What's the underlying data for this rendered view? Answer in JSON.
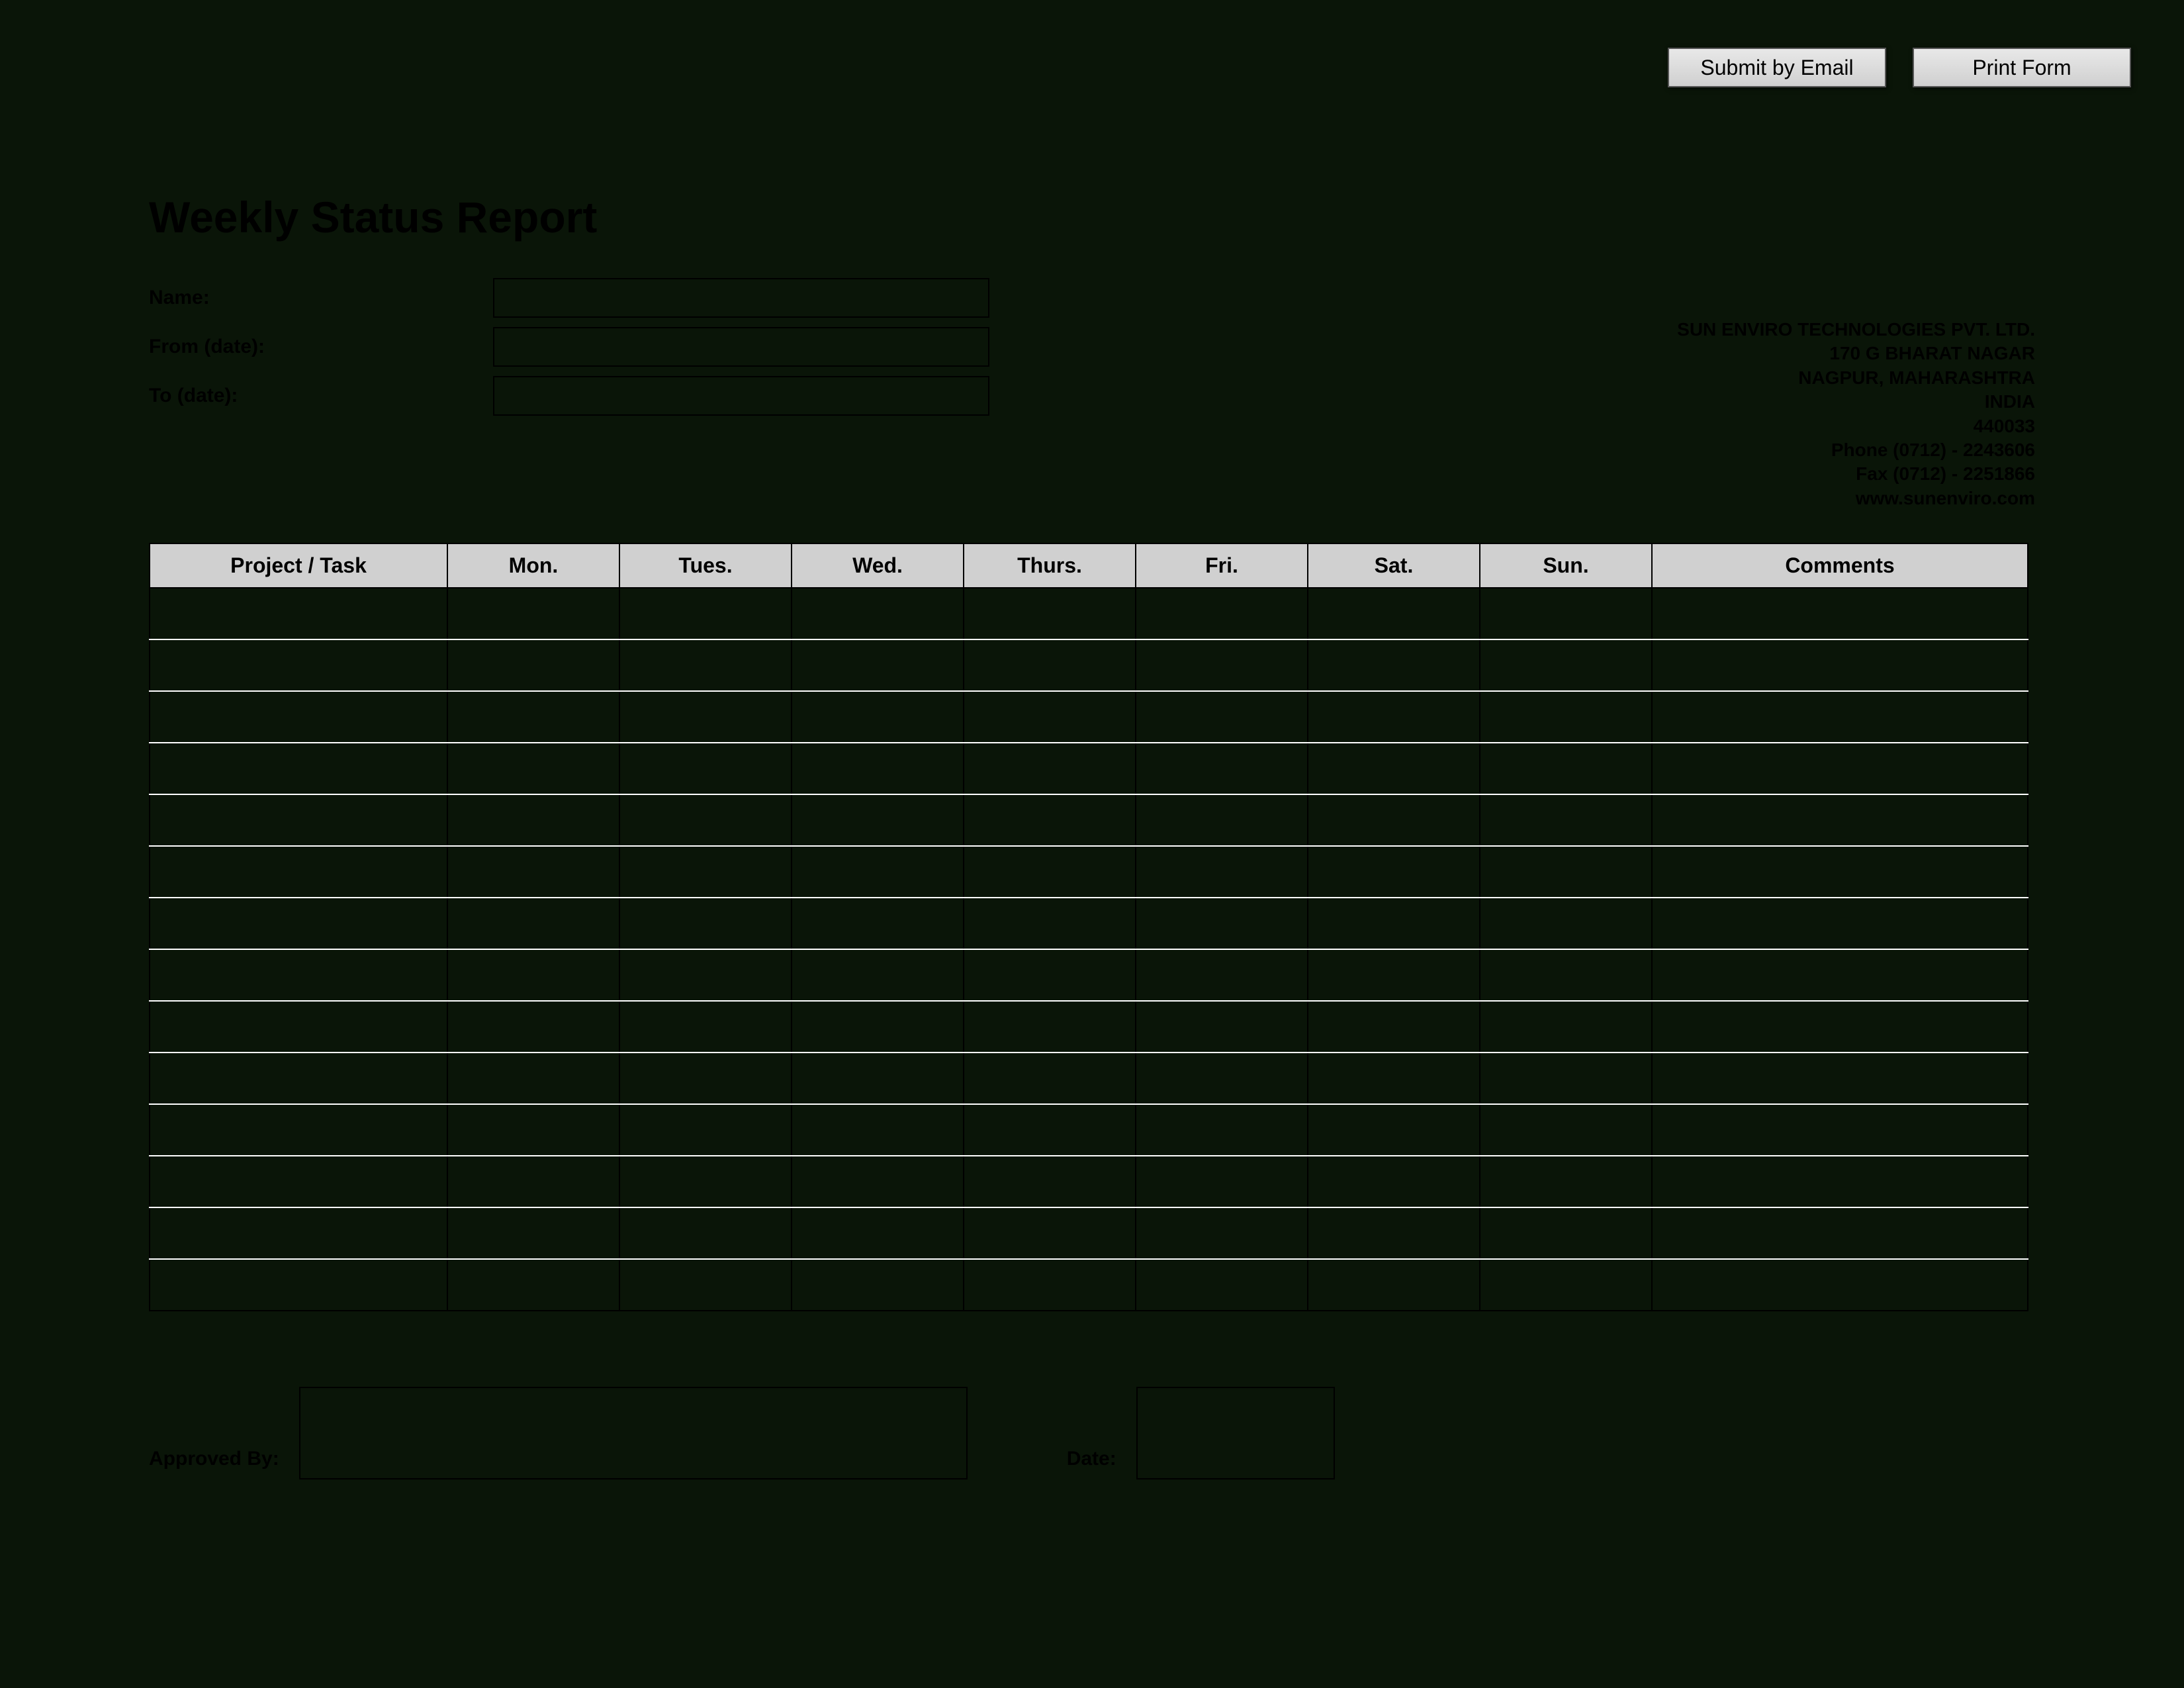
{
  "actions": {
    "submit_label": "Submit by Email",
    "print_label": "Print Form"
  },
  "title": "Weekly Status Report",
  "meta": {
    "name_label": "Name:",
    "name_value": "",
    "from_label": "From (date):",
    "from_value": "",
    "to_label": "To (date):",
    "to_value": ""
  },
  "company": {
    "line1": "SUN ENVIRO TECHNOLOGIES PVT. LTD.",
    "line2": "170 G BHARAT NAGAR",
    "line3": "NAGPUR, MAHARASHTRA",
    "line4": "INDIA",
    "line5": "440033",
    "line6": "Phone (0712) - 2243606",
    "line7": "Fax (0712) - 2251866",
    "line8": "www.sunenviro.com"
  },
  "table": {
    "headers": {
      "project": "Project / Task",
      "mon": "Mon.",
      "tue": "Tues.",
      "wed": "Wed.",
      "thu": "Thurs.",
      "fri": "Fri.",
      "sat": "Sat.",
      "sun": "Sun.",
      "comments": "Comments"
    },
    "row_count": 14,
    "header_bg": "#d0d0d0",
    "row_separator_color": "#ffffff",
    "border_color": "#000000"
  },
  "footer": {
    "approved_label": "Approved By:",
    "approved_value": "",
    "date_label": "Date:",
    "date_value": ""
  },
  "styling": {
    "page_bg": "#0a1508",
    "button_bg_top": "#e8e8e8",
    "button_bg_bottom": "#d0d0d0",
    "text_color": "#000000"
  }
}
